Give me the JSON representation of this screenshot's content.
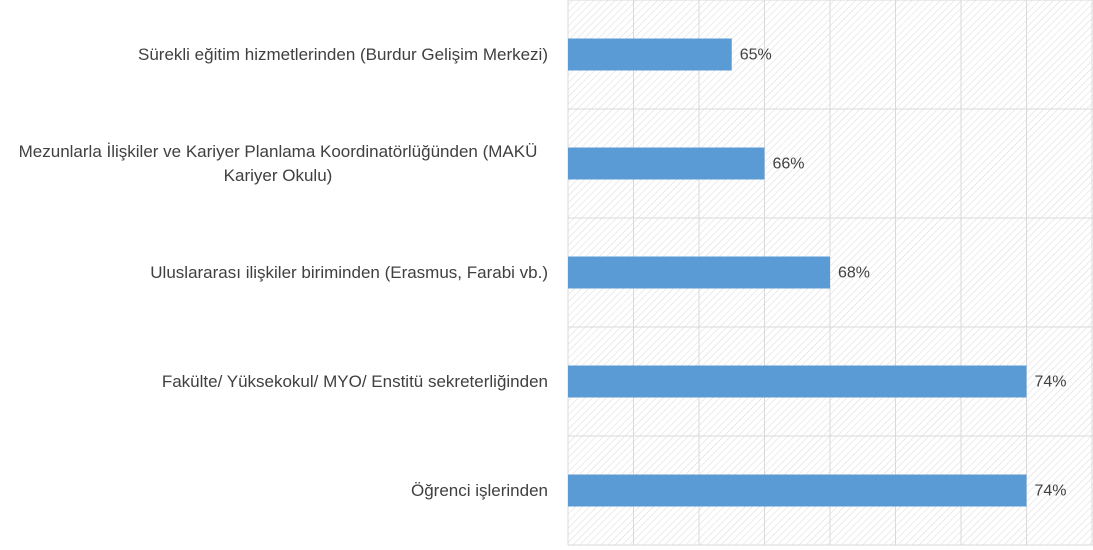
{
  "chart_data": {
    "type": "bar",
    "orientation": "horizontal",
    "categories": [
      "Sürekli eğitim hizmetlerinden (Burdur Gelişim Merkezi)",
      "Mezunlarla İlişkiler ve Kariyer Planlama Koordinatörlüğünden (MAKÜ Kariyer Okulu)",
      "Uluslararası ilişkiler biriminden (Erasmus, Farabi vb.)",
      "Fakülte/ Yüksekokul/ MYO/ Enstitü sekreterliğinden",
      "Öğrenci işlerinden"
    ],
    "values": [
      65,
      66,
      68,
      74,
      74
    ],
    "value_labels": [
      "65%",
      "66%",
      "68%",
      "74%",
      "74%"
    ],
    "color": "#5b9bd5",
    "xlim": [
      60,
      76
    ],
    "xticks": [
      60,
      62,
      64,
      66,
      68,
      70,
      72,
      74,
      76
    ],
    "grid": true
  }
}
